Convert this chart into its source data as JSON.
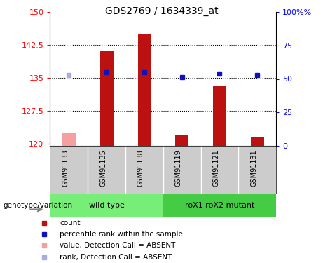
{
  "title": "GDS2769 / 1634339_at",
  "samples": [
    "GSM91133",
    "GSM91135",
    "GSM91138",
    "GSM91119",
    "GSM91121",
    "GSM91131"
  ],
  "groups": [
    "wild type",
    "roX1 roX2 mutant"
  ],
  "ylim_left": [
    119.5,
    150
  ],
  "ylim_right": [
    0,
    100
  ],
  "yticks_left": [
    120,
    127.5,
    135,
    142.5,
    150
  ],
  "yticks_right": [
    0,
    25,
    50,
    75,
    100
  ],
  "bar_values": [
    122.5,
    141.0,
    145.0,
    122.0,
    133.0,
    121.5
  ],
  "bar_absent": [
    true,
    false,
    false,
    false,
    false,
    false
  ],
  "rank_values": [
    135.7,
    136.3,
    136.3,
    135.1,
    136.0,
    135.6
  ],
  "rank_absent": [
    true,
    false,
    false,
    false,
    false,
    false
  ],
  "bar_color_present": "#bb1111",
  "bar_color_absent": "#f4a0a0",
  "rank_color_present": "#1111bb",
  "rank_color_absent": "#aaaadd",
  "bar_width": 0.35,
  "marker_size": 5,
  "dotted_yticks": [
    127.5,
    135.0,
    142.5
  ],
  "gray_bg": "#cccccc",
  "green_light": "#77ee77",
  "green_dark": "#44cc44",
  "legend_items": [
    {
      "label": "count",
      "color": "#bb1111"
    },
    {
      "label": "percentile rank within the sample",
      "color": "#1111bb"
    },
    {
      "label": "value, Detection Call = ABSENT",
      "color": "#f4a0a0"
    },
    {
      "label": "rank, Detection Call = ABSENT",
      "color": "#aaaadd"
    }
  ]
}
